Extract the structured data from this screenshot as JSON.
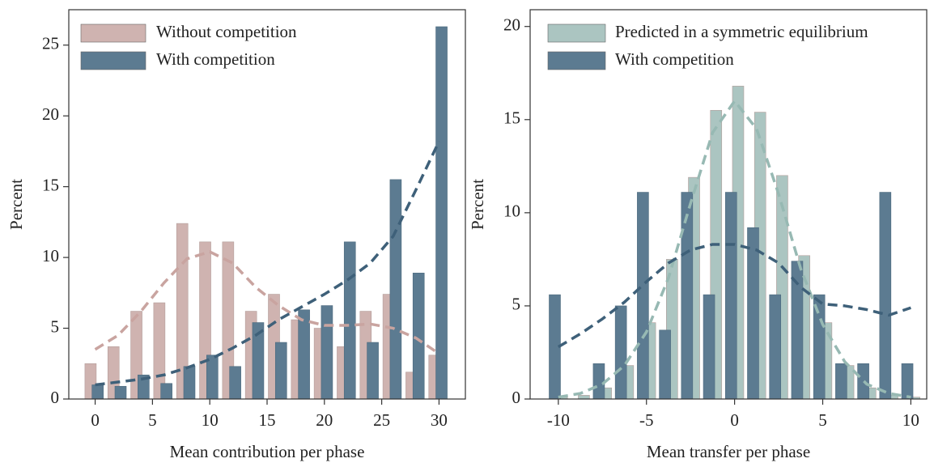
{
  "chart_data": [
    {
      "type": "bar",
      "x": [
        0,
        2,
        4,
        6,
        8,
        10,
        12,
        14,
        16,
        18,
        20,
        22,
        24,
        26,
        28,
        30
      ],
      "xlabel": "Mean contribution per phase",
      "ylabel": "Percent",
      "xlim": [
        -2.3,
        32.3
      ],
      "ylim": [
        0,
        27.5
      ],
      "xticks": [
        0,
        5,
        10,
        15,
        20,
        25,
        30
      ],
      "yticks": [
        0,
        5,
        10,
        15,
        20,
        25
      ],
      "series": [
        {
          "name": "Without competition",
          "color": "#cfb3b0",
          "line_color": "#c9a4a0",
          "values": [
            2.5,
            3.7,
            6.2,
            6.8,
            12.4,
            11.1,
            11.1,
            6.2,
            7.4,
            5.6,
            5.0,
            3.7,
            6.2,
            7.4,
            1.9,
            3.1
          ],
          "smooth": [
            3.5,
            4.5,
            6.2,
            8.2,
            9.9,
            10.4,
            9.6,
            7.9,
            6.6,
            5.6,
            5.2,
            5.2,
            5.3,
            5.0,
            4.3,
            3.2
          ]
        },
        {
          "name": "With competition",
          "color": "#5c7b91",
          "line_color": "#3e6079",
          "values": [
            1.0,
            0.9,
            1.7,
            1.1,
            2.3,
            3.1,
            2.3,
            5.4,
            4.0,
            6.3,
            6.6,
            11.1,
            4.0,
            15.5,
            8.9,
            26.3
          ],
          "smooth": [
            1.0,
            1.2,
            1.4,
            1.7,
            2.2,
            2.8,
            3.6,
            4.5,
            5.6,
            6.5,
            7.4,
            8.4,
            9.6,
            11.5,
            14.8,
            18.2
          ]
        }
      ]
    },
    {
      "type": "bar",
      "x": [
        -10,
        -8.75,
        -7.5,
        -6.25,
        -5,
        -3.75,
        -2.5,
        -1.25,
        0,
        1.25,
        2.5,
        3.75,
        5,
        6.25,
        7.5,
        8.75,
        10
      ],
      "xlabel": "Mean transfer per phase",
      "ylabel": "Percent",
      "xlim": [
        -11.6,
        10.9
      ],
      "ylim": [
        0,
        20.9
      ],
      "xticks": [
        -10,
        -5,
        0,
        5,
        10
      ],
      "yticks": [
        0,
        5,
        10,
        15,
        20
      ],
      "series": [
        {
          "name": "Predicted in a symmetric equilibrium",
          "color": "#abc5c1",
          "line_color": "#97b9b3",
          "values": [
            0.1,
            0.2,
            0.6,
            1.8,
            4.1,
            7.5,
            11.9,
            15.5,
            16.8,
            15.4,
            12.0,
            7.7,
            4.1,
            1.8,
            0.6,
            0.2,
            0.1
          ],
          "smooth": [
            0.1,
            0.3,
            0.8,
            1.8,
            3.6,
            6.5,
            10.5,
            14.3,
            16.0,
            14.5,
            11.0,
            7.0,
            4.0,
            2.0,
            0.8,
            0.3,
            0.1
          ]
        },
        {
          "name": "With competition",
          "color": "#5c7b91",
          "line_color": "#3e6079",
          "values": [
            5.6,
            0,
            1.9,
            5.0,
            11.1,
            3.7,
            11.1,
            5.6,
            11.1,
            9.2,
            5.6,
            7.4,
            5.6,
            1.9,
            1.9,
            11.1,
            1.9
          ],
          "smooth": [
            2.8,
            3.5,
            4.3,
            5.2,
            6.3,
            7.3,
            8.0,
            8.3,
            8.3,
            8.0,
            7.3,
            6.0,
            5.1,
            5.0,
            4.8,
            4.5,
            4.9
          ]
        }
      ]
    }
  ]
}
